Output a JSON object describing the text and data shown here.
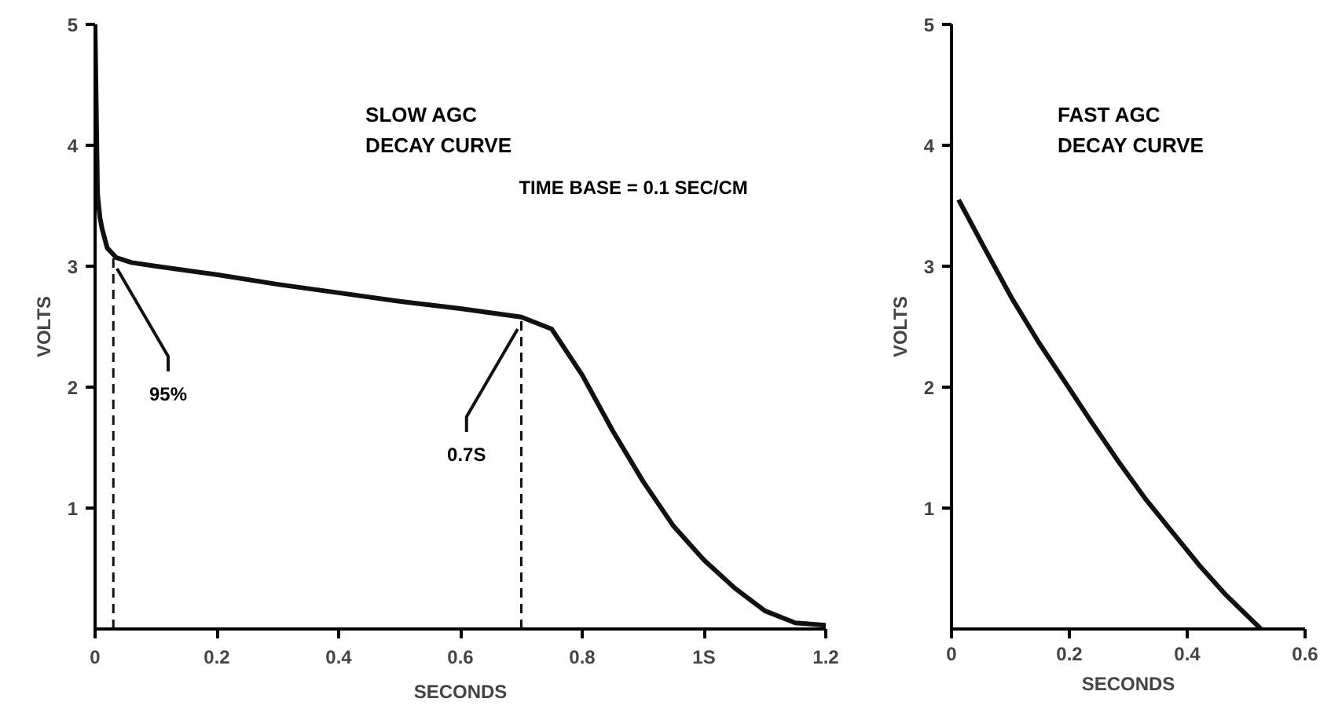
{
  "chart_data": [
    {
      "type": "line",
      "title": "SLOW AGC\nDECAY CURVE",
      "xlabel": "SECONDS",
      "ylabel": "VOLTS",
      "xlim": [
        0,
        1.2
      ],
      "ylim": [
        0,
        5
      ],
      "xticks": [
        0,
        0.2,
        0.4,
        0.6,
        0.8,
        {
          "value": 1,
          "label": "1S"
        },
        1.2
      ],
      "yticks": [
        1,
        2,
        3,
        4,
        5
      ],
      "series": [
        {
          "color": "#111111",
          "x": [
            0,
            0.004,
            0.008,
            0.012,
            0.02,
            0.035,
            0.06,
            0.1,
            0.2,
            0.3,
            0.4,
            0.5,
            0.6,
            0.7,
            0.75,
            0.8,
            0.85,
            0.9,
            0.95,
            1.0,
            1.05,
            1.1,
            1.15,
            1.2
          ],
          "values": [
            5,
            3.6,
            3.4,
            3.3,
            3.15,
            3.07,
            3.03,
            3.0,
            2.93,
            2.85,
            2.78,
            2.71,
            2.65,
            2.58,
            2.48,
            2.1,
            1.64,
            1.22,
            0.85,
            0.57,
            0.34,
            0.15,
            0.05,
            0.03
          ]
        },
        {
          "color": "#111111",
          "line_style": "dashed",
          "x": [
            0.03,
            0.03
          ],
          "values": [
            0,
            3.1
          ]
        },
        {
          "color": "#111111",
          "line_style": "dashed",
          "x": [
            0.7,
            0.7
          ],
          "values": [
            0,
            2.58
          ]
        }
      ],
      "annotations": [
        {
          "text": "95%",
          "x": 0.03,
          "y": 3.08
        },
        {
          "text": "0.7S",
          "x": 0.7,
          "y": 2.58
        },
        "TIME BASE = 0.1 SEC/CM"
      ]
    },
    {
      "type": "line",
      "title": "FAST AGC\nDECAY CURVE",
      "xlabel": "SECONDS",
      "ylabel": "VOLTS",
      "xlim": [
        0,
        0.6
      ],
      "ylim": [
        0,
        5
      ],
      "xticks": [
        0,
        0.2,
        0.4,
        0.6
      ],
      "yticks": [
        1,
        2,
        3,
        4,
        5
      ],
      "series": [
        {
          "color": "#111111",
          "x": [
            0.012,
            0.057,
            0.103,
            0.148,
            0.193,
            0.239,
            0.284,
            0.33,
            0.375,
            0.42,
            0.466,
            0.525
          ],
          "values": [
            3.55,
            3.14,
            2.73,
            2.37,
            2.04,
            1.7,
            1.38,
            1.07,
            0.8,
            0.53,
            0.28,
            0
          ]
        }
      ]
    }
  ]
}
